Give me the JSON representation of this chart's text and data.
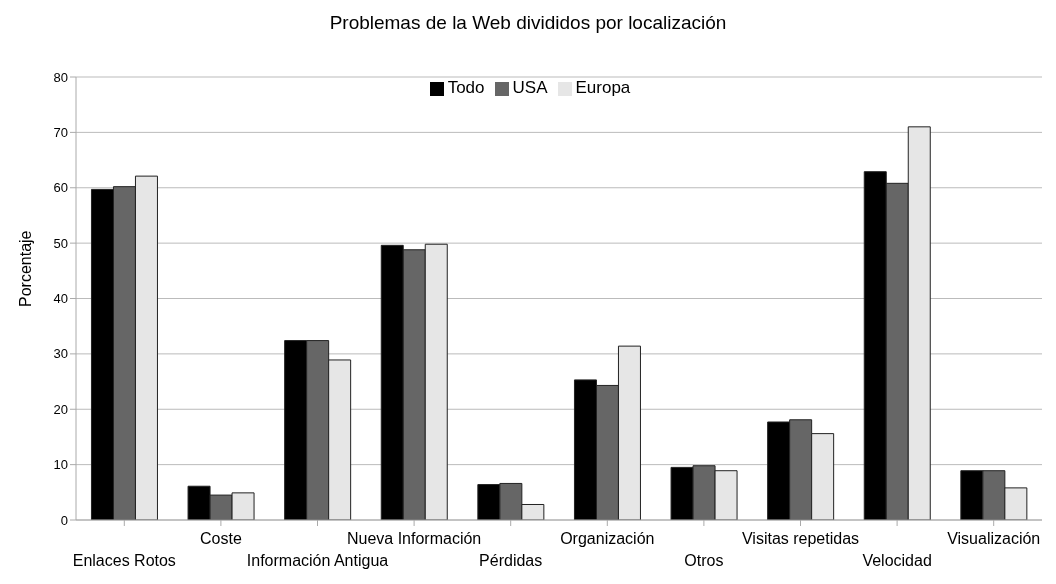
{
  "chart_data": {
    "type": "bar",
    "title": "Problemas de la Web divididos por localización",
    "ylabel": "Porcentaje",
    "categories": [
      "Enlaces Rotos",
      "Coste",
      "Información Antigua",
      "Nueva Información",
      "Pérdidas",
      "Organización",
      "Otros",
      "Visitas repetidas",
      "Velocidad",
      "Visualización"
    ],
    "series": [
      {
        "name": "Todo",
        "color": "#000000",
        "values": [
          59.7,
          6.1,
          32.4,
          49.6,
          6.4,
          25.3,
          9.5,
          17.7,
          62.9,
          8.9
        ]
      },
      {
        "name": "USA",
        "color": "#666666",
        "values": [
          60.2,
          4.5,
          32.4,
          48.8,
          6.6,
          24.3,
          9.8,
          18.1,
          60.8,
          8.9
        ]
      },
      {
        "name": "Europa",
        "color": "#e6e6e6",
        "values": [
          62.1,
          4.9,
          28.9,
          49.8,
          2.8,
          31.4,
          8.9,
          15.6,
          71.0,
          5.8
        ]
      }
    ],
    "ylim": [
      0,
      80
    ],
    "yticks": [
      0,
      10,
      20,
      30,
      40,
      50,
      60,
      70,
      80
    ],
    "grid": "y",
    "legend": "top"
  }
}
